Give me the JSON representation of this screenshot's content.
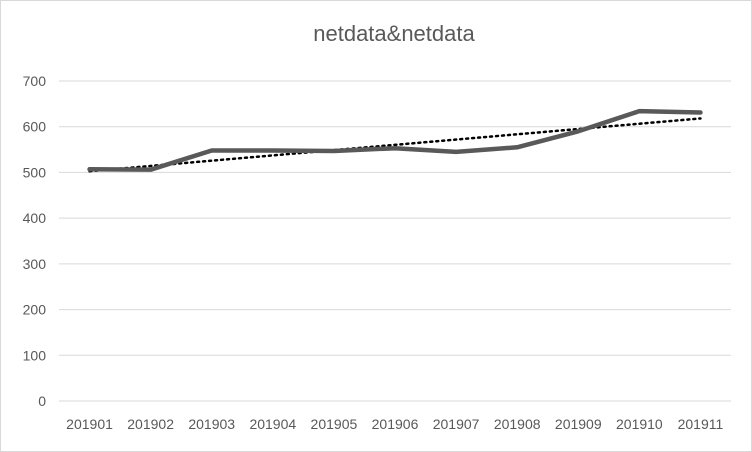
{
  "chart_data": {
    "type": "line",
    "title": "netdata&netdata",
    "categories": [
      "201901",
      "201902",
      "201903",
      "201904",
      "201905",
      "201906",
      "201907",
      "201908",
      "201909",
      "201910",
      "201911"
    ],
    "series": [
      {
        "values": [
          507,
          506,
          548,
          548,
          547,
          553,
          545,
          555,
          590,
          634,
          631
        ],
        "color": "#595959"
      }
    ],
    "trendline": {
      "type": "linear",
      "style": "dotted",
      "color": "#000000"
    },
    "ylim": [
      0,
      700
    ],
    "yticks": [
      0,
      100,
      200,
      300,
      400,
      500,
      600,
      700
    ],
    "grid": true,
    "legend": "none"
  }
}
